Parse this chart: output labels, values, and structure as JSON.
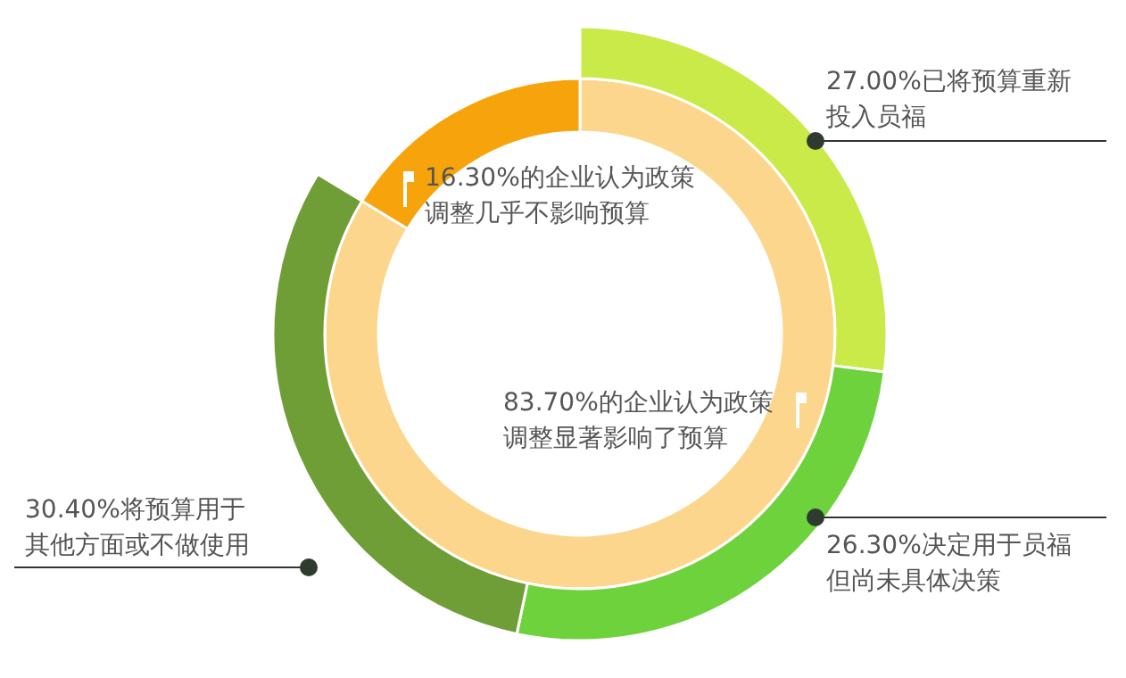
{
  "chart_data": [
    {
      "type": "donut",
      "categories": [
        "83.70%的企业认为政策调整显著影响了预算",
        "16.30%的企业认为政策调整几乎不影响预算"
      ],
      "values": [
        83.7,
        16.3
      ],
      "colors": [
        "#fdd68e",
        "#f7a30c"
      ]
    },
    {
      "type": "donut",
      "categories": [
        "27.00%已将预算重新投入员福",
        "26.30%决定用于员福但尚未具体决策",
        "30.40%将预算用于其他方面或不做使用"
      ],
      "values": [
        27.0,
        26.3,
        30.4
      ],
      "colors": [
        "#c9ea48",
        "#6dd23b",
        "#6f9e37"
      ]
    }
  ]
}
